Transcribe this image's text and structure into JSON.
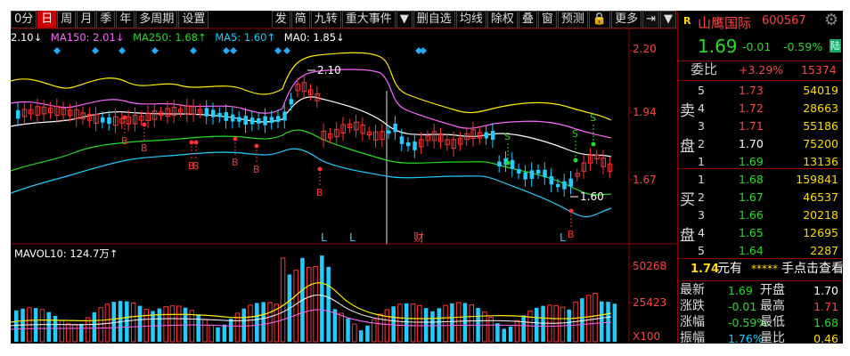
{
  "toolbar": {
    "left_tabs": [
      "0分",
      "日",
      "周",
      "月",
      "季",
      "年",
      "多周期",
      "设置"
    ],
    "right_tabs": [
      "发",
      "简",
      "九转",
      "重大事件",
      "▼",
      "删自选",
      "均线",
      "除权",
      "叠",
      "窗",
      "预测",
      "🔒",
      "更多",
      "⇥",
      "▼"
    ]
  },
  "indicators": [
    {
      "text": "2.10↓",
      "color": "#ffffff"
    },
    {
      "text": "MA150: 2.01↓",
      "color": "#ff66ff"
    },
    {
      "text": "MA250: 1.68↑",
      "color": "#22dd22"
    },
    {
      "text": "MA5: 1.60↑",
      "color": "#22ccff"
    },
    {
      "text": "MA0: 1.85↓",
      "color": "#ffffff"
    }
  ],
  "price_axis": [
    "2.20",
    "1.94",
    "1.67"
  ],
  "annotations": {
    "high_label": "2.10",
    "low_label": "1.60"
  },
  "event_markers": [
    "L",
    "L",
    "财",
    "L"
  ],
  "volume": {
    "label": "MAVOL10: 124.7万↑",
    "axis": [
      "50268",
      "25423",
      "X100"
    ]
  },
  "quote": {
    "r_badge": "R",
    "name": "山鹰国际",
    "code": "600567",
    "price": "1.69",
    "change": "-0.01",
    "pct": "-0.59%",
    "market_tag": "陆",
    "webi_label": "委比",
    "webi_pct": "+3.29%",
    "webi_val": "15374"
  },
  "sell": {
    "side_label_1": "卖",
    "side_label_2": "盘",
    "levels": [
      {
        "n": "5",
        "p": "1.73",
        "v": "54019",
        "pc": "#ff4444"
      },
      {
        "n": "4",
        "p": "1.72",
        "v": "28663",
        "pc": "#ff4444"
      },
      {
        "n": "3",
        "p": "1.71",
        "v": "55186",
        "pc": "#ff4444"
      },
      {
        "n": "2",
        "p": "1.70",
        "v": "75200",
        "pc": "#ffffff"
      },
      {
        "n": "1",
        "p": "1.69",
        "v": "13136",
        "pc": "#22dd22"
      }
    ]
  },
  "buy": {
    "side_label_1": "买",
    "side_label_2": "盘",
    "levels": [
      {
        "n": "1",
        "p": "1.68",
        "v": "159841",
        "pc": "#22dd22"
      },
      {
        "n": "2",
        "p": "1.67",
        "v": "46537",
        "pc": "#22dd22"
      },
      {
        "n": "3",
        "p": "1.66",
        "v": "20218",
        "pc": "#22dd22"
      },
      {
        "n": "4",
        "p": "1.65",
        "v": "12695",
        "pc": "#22dd22"
      },
      {
        "n": "5",
        "p": "1.64",
        "v": "2287",
        "pc": "#22dd22"
      }
    ]
  },
  "ad": {
    "amount": "1.74",
    "unit": "元有",
    "stars": "*****",
    "text": "手点击查看"
  },
  "stats": [
    {
      "l1": "最新",
      "v1": "1.69",
      "c1": "#22dd22",
      "l2": "开盘",
      "v2": "1.70",
      "c2": "#ffffff"
    },
    {
      "l1": "涨跌",
      "v1": "-0.01",
      "c1": "#22dd22",
      "l2": "最高",
      "v2": "1.71",
      "c2": "#ff4444"
    },
    {
      "l1": "涨幅",
      "v1": "-0.59%",
      "c1": "#22dd22",
      "l2": "最低",
      "v2": "1.68",
      "c2": "#22dd22"
    },
    {
      "l1": "振幅",
      "v1": "1.76%",
      "c1": "#22ccff",
      "l2": "量比",
      "v2": "0.46",
      "c2": "#ffdd00"
    }
  ],
  "colors": {
    "up": "#ff3333",
    "down": "#22ccff",
    "ma_white": "#ffffff",
    "band_yellow": "#ffee00",
    "band_pink": "#ff66ff",
    "band_green": "#22dd22",
    "band_blue": "#22ccff"
  }
}
